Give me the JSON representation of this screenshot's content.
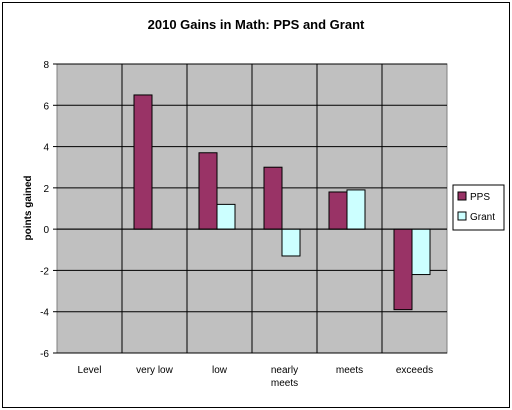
{
  "chart_data": {
    "type": "bar",
    "title": "2010 Gains in Math: PPS and Grant",
    "xlabel": "",
    "ylabel": "points gained",
    "categories": [
      [
        "Level"
      ],
      [
        "very low"
      ],
      [
        "low"
      ],
      [
        "nearly",
        "meets"
      ],
      [
        "meets"
      ],
      [
        "exceeds"
      ]
    ],
    "series": [
      {
        "name": "PPS",
        "color": "#993366",
        "values": [
          null,
          6.5,
          3.7,
          3.0,
          1.8,
          -3.9
        ]
      },
      {
        "name": "Grant",
        "color": "#ccffff",
        "values": [
          null,
          null,
          1.2,
          -1.3,
          1.9,
          -2.2
        ]
      }
    ],
    "ylim": [
      -6,
      8
    ],
    "yticks": [
      -6,
      -4,
      -2,
      0,
      2,
      4,
      6,
      8
    ],
    "grid": true,
    "plot_background": "#c0c0c0",
    "legend_position": "right"
  }
}
